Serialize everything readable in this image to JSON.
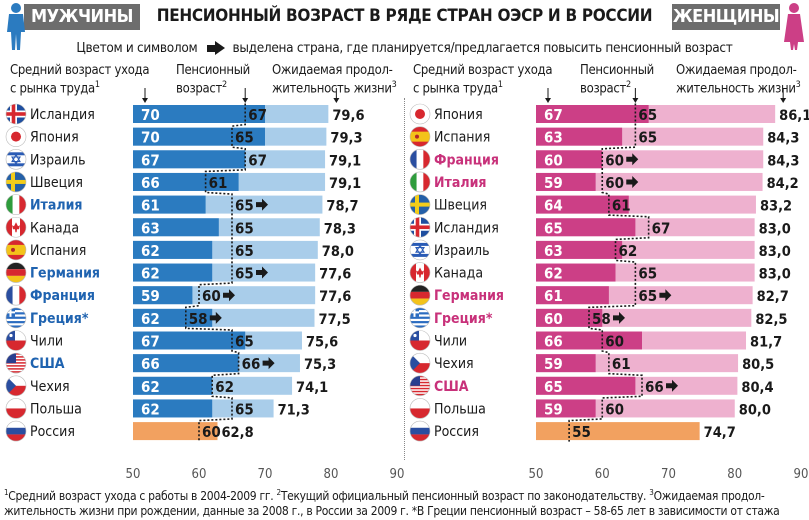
{
  "header": {
    "left_tag": "МУЖЧИНЫ",
    "right_tag": "ЖЕНЩИНЫ",
    "title": "ПЕНСИОННЫЙ ВОЗРАСТ В РЯДЕ СТРАН ОЭСР И В РОССИИ",
    "subtitle_before": "Цветом и символом",
    "subtitle_after": "выделена страна, где планируется/предлагается повысить пенсионный возраст"
  },
  "columns": {
    "left": {
      "exit_label_1": "Средний возраст ухода",
      "exit_label_2": "с рынка труда",
      "exit_sup": "1",
      "pension_label_1": "Пенсионный",
      "pension_label_2": "возраст",
      "pension_sup": "2",
      "life_label_1": "Ожидаемая продол-",
      "life_label_2": "жительность жизни",
      "life_sup": "3"
    },
    "right": {
      "exit_label_1": "Средний возраст ухода",
      "exit_label_2": "с рынка труда",
      "exit_sup": "1",
      "pension_label_1": "Пенсионный",
      "pension_label_2": "возраст",
      "pension_sup": "2",
      "life_label_1": "Ожидаемая продол-",
      "life_label_2": "жительность жизни",
      "life_sup": "3"
    }
  },
  "footnote": {
    "sup1": "1",
    "text1": "Средний возраст ухода с работы в 2004-2009 гг.",
    "sup2": "2",
    "text2": "Текущий официальный пенсионный возраст по законодательству.",
    "sup3": "3",
    "text3": "Ожидаемая продол-жительность жизни при рождении, данные за 2008 г., в России за 2009 г. *В Греции пенсионный возраст – 58-65 лет в зависимости от стажа"
  },
  "colors": {
    "male_dark": "#2b7bc0",
    "male_light": "#a9cdea",
    "female_dark": "#cc3f86",
    "female_light": "#eeb1cf",
    "russia": "#f2a160",
    "highlight_male": "#1f63b0",
    "highlight_female": "#c8317a",
    "tag_bg": "#6d6d6d"
  },
  "chart_data": [
    {
      "type": "bar",
      "title": "МУЖЧИНЫ",
      "xlim": [
        50,
        90
      ],
      "x_ticks": [
        "50",
        "60",
        "70",
        "80",
        "90"
      ],
      "series_names": [
        "Средний возраст ухода с рынка труда",
        "Пенсионный возраст",
        "Ожидаемая продолжительность жизни"
      ],
      "rows": [
        {
          "country": "Исландия",
          "flag": "iceland",
          "exit": 70,
          "exit_label": "70",
          "pension": 67,
          "pension_label": "67",
          "life": 79.6,
          "life_label": "79,6",
          "highlight": false
        },
        {
          "country": "Япония",
          "flag": "japan",
          "exit": 70,
          "exit_label": "70",
          "pension": 65,
          "pension_label": "65",
          "life": 79.3,
          "life_label": "79,3",
          "highlight": false
        },
        {
          "country": "Израиль",
          "flag": "israel",
          "exit": 67,
          "exit_label": "67",
          "pension": 67,
          "pension_label": "67",
          "life": 79.1,
          "life_label": "79,1",
          "highlight": false
        },
        {
          "country": "Швеция",
          "flag": "sweden",
          "exit": 66,
          "exit_label": "66",
          "pension": 61,
          "pension_label": "61",
          "life": 79.1,
          "life_label": "79,1",
          "highlight": false
        },
        {
          "country": "Италия",
          "flag": "italy",
          "exit": 61,
          "exit_label": "61",
          "pension": 65,
          "pension_label": "65",
          "life": 78.7,
          "life_label": "78,7",
          "highlight": true
        },
        {
          "country": "Канада",
          "flag": "canada",
          "exit": 63,
          "exit_label": "63",
          "pension": 65,
          "pension_label": "65",
          "life": 78.3,
          "life_label": "78,3",
          "highlight": false
        },
        {
          "country": "Испания",
          "flag": "spain",
          "exit": 62,
          "exit_label": "62",
          "pension": 65,
          "pension_label": "65",
          "life": 78.0,
          "life_label": "78,0",
          "highlight": false
        },
        {
          "country": "Германия",
          "flag": "germany",
          "exit": 62,
          "exit_label": "62",
          "pension": 65,
          "pension_label": "65",
          "life": 77.6,
          "life_label": "77,6",
          "highlight": true
        },
        {
          "country": "Франция",
          "flag": "france",
          "exit": 59,
          "exit_label": "59",
          "pension": 60,
          "pension_label": "60",
          "life": 77.6,
          "life_label": "77,6",
          "highlight": true
        },
        {
          "country": "Греция*",
          "flag": "greece",
          "exit": 62,
          "exit_label": "62",
          "pension": 58,
          "pension_label": "58",
          "life": 77.5,
          "life_label": "77,5",
          "highlight": true
        },
        {
          "country": "Чили",
          "flag": "chile",
          "exit": 67,
          "exit_label": "67",
          "pension": 65,
          "pension_label": "65",
          "life": 75.6,
          "life_label": "75,6",
          "highlight": false
        },
        {
          "country": "США",
          "flag": "usa",
          "exit": 66,
          "exit_label": "66",
          "pension": 66,
          "pension_label": "66",
          "life": 75.3,
          "life_label": "75,3",
          "highlight": true
        },
        {
          "country": "Чехия",
          "flag": "czech",
          "exit": 62,
          "exit_label": "62",
          "pension": 62,
          "pension_label": "62",
          "life": 74.1,
          "life_label": "74,1",
          "highlight": false
        },
        {
          "country": "Польша",
          "flag": "poland",
          "exit": 62,
          "exit_label": "62",
          "pension": 65,
          "pension_label": "65",
          "life": 71.3,
          "life_label": "71,3",
          "highlight": false
        },
        {
          "country": "Россия",
          "flag": "russia",
          "exit": null,
          "exit_label": "",
          "pension": 60,
          "pension_label": "60",
          "life": 62.8,
          "life_label": "62,8",
          "highlight": false,
          "russia": true
        }
      ]
    },
    {
      "type": "bar",
      "title": "ЖЕНЩИНЫ",
      "xlim": [
        50,
        90
      ],
      "x_ticks": [
        "50",
        "60",
        "70",
        "80",
        "90"
      ],
      "series_names": [
        "Средний возраст ухода с рынка труда",
        "Пенсионный возраст",
        "Ожидаемая продолжительность жизни"
      ],
      "rows": [
        {
          "country": "Япония",
          "flag": "japan",
          "exit": 67,
          "exit_label": "67",
          "pension": 65,
          "pension_label": "65",
          "life": 86.1,
          "life_label": "86,1",
          "highlight": false
        },
        {
          "country": "Испания",
          "flag": "spain",
          "exit": 63,
          "exit_label": "63",
          "pension": 65,
          "pension_label": "65",
          "life": 84.3,
          "life_label": "84,3",
          "highlight": false
        },
        {
          "country": "Франция",
          "flag": "france",
          "exit": 60,
          "exit_label": "60",
          "pension": 60,
          "pension_label": "60",
          "life": 84.3,
          "life_label": "84,3",
          "highlight": true
        },
        {
          "country": "Италия",
          "flag": "italy",
          "exit": 59,
          "exit_label": "59",
          "pension": 60,
          "pension_label": "60",
          "life": 84.2,
          "life_label": "84,2",
          "highlight": true
        },
        {
          "country": "Швеция",
          "flag": "sweden",
          "exit": 64,
          "exit_label": "64",
          "pension": 61,
          "pension_label": "61",
          "life": 83.2,
          "life_label": "83,2",
          "highlight": false
        },
        {
          "country": "Исландия",
          "flag": "iceland",
          "exit": 65,
          "exit_label": "65",
          "pension": 67,
          "pension_label": "67",
          "life": 83.0,
          "life_label": "83,0",
          "highlight": false
        },
        {
          "country": "Израиль",
          "flag": "israel",
          "exit": 63,
          "exit_label": "63",
          "pension": 62,
          "pension_label": "62",
          "life": 83.0,
          "life_label": "83,0",
          "highlight": false
        },
        {
          "country": "Канада",
          "flag": "canada",
          "exit": 62,
          "exit_label": "62",
          "pension": 65,
          "pension_label": "65",
          "life": 83.0,
          "life_label": "83,0",
          "highlight": false
        },
        {
          "country": "Германия",
          "flag": "germany",
          "exit": 61,
          "exit_label": "61",
          "pension": 65,
          "pension_label": "65",
          "life": 82.7,
          "life_label": "82,7",
          "highlight": true
        },
        {
          "country": "Греция*",
          "flag": "greece",
          "exit": 60,
          "exit_label": "60",
          "pension": 58,
          "pension_label": "58",
          "life": 82.5,
          "life_label": "82,5",
          "highlight": true
        },
        {
          "country": "Чили",
          "flag": "chile",
          "exit": 66,
          "exit_label": "66",
          "pension": 60,
          "pension_label": "60",
          "life": 81.7,
          "life_label": "81,7",
          "highlight": false
        },
        {
          "country": "Чехия",
          "flag": "czech",
          "exit": 59,
          "exit_label": "59",
          "pension": 61,
          "pension_label": "61",
          "life": 80.5,
          "life_label": "80,5",
          "highlight": false
        },
        {
          "country": "США",
          "flag": "usa",
          "exit": 65,
          "exit_label": "65",
          "pension": 66,
          "pension_label": "66",
          "life": 80.4,
          "life_label": "80,4",
          "highlight": true
        },
        {
          "country": "Польша",
          "flag": "poland",
          "exit": 59,
          "exit_label": "59",
          "pension": 60,
          "pension_label": "60",
          "life": 80.0,
          "life_label": "80,0",
          "highlight": false
        },
        {
          "country": "Россия",
          "flag": "russia",
          "exit": null,
          "exit_label": "",
          "pension": 55,
          "pension_label": "55",
          "life": 74.7,
          "life_label": "74,7",
          "highlight": false,
          "russia": true
        }
      ]
    }
  ]
}
